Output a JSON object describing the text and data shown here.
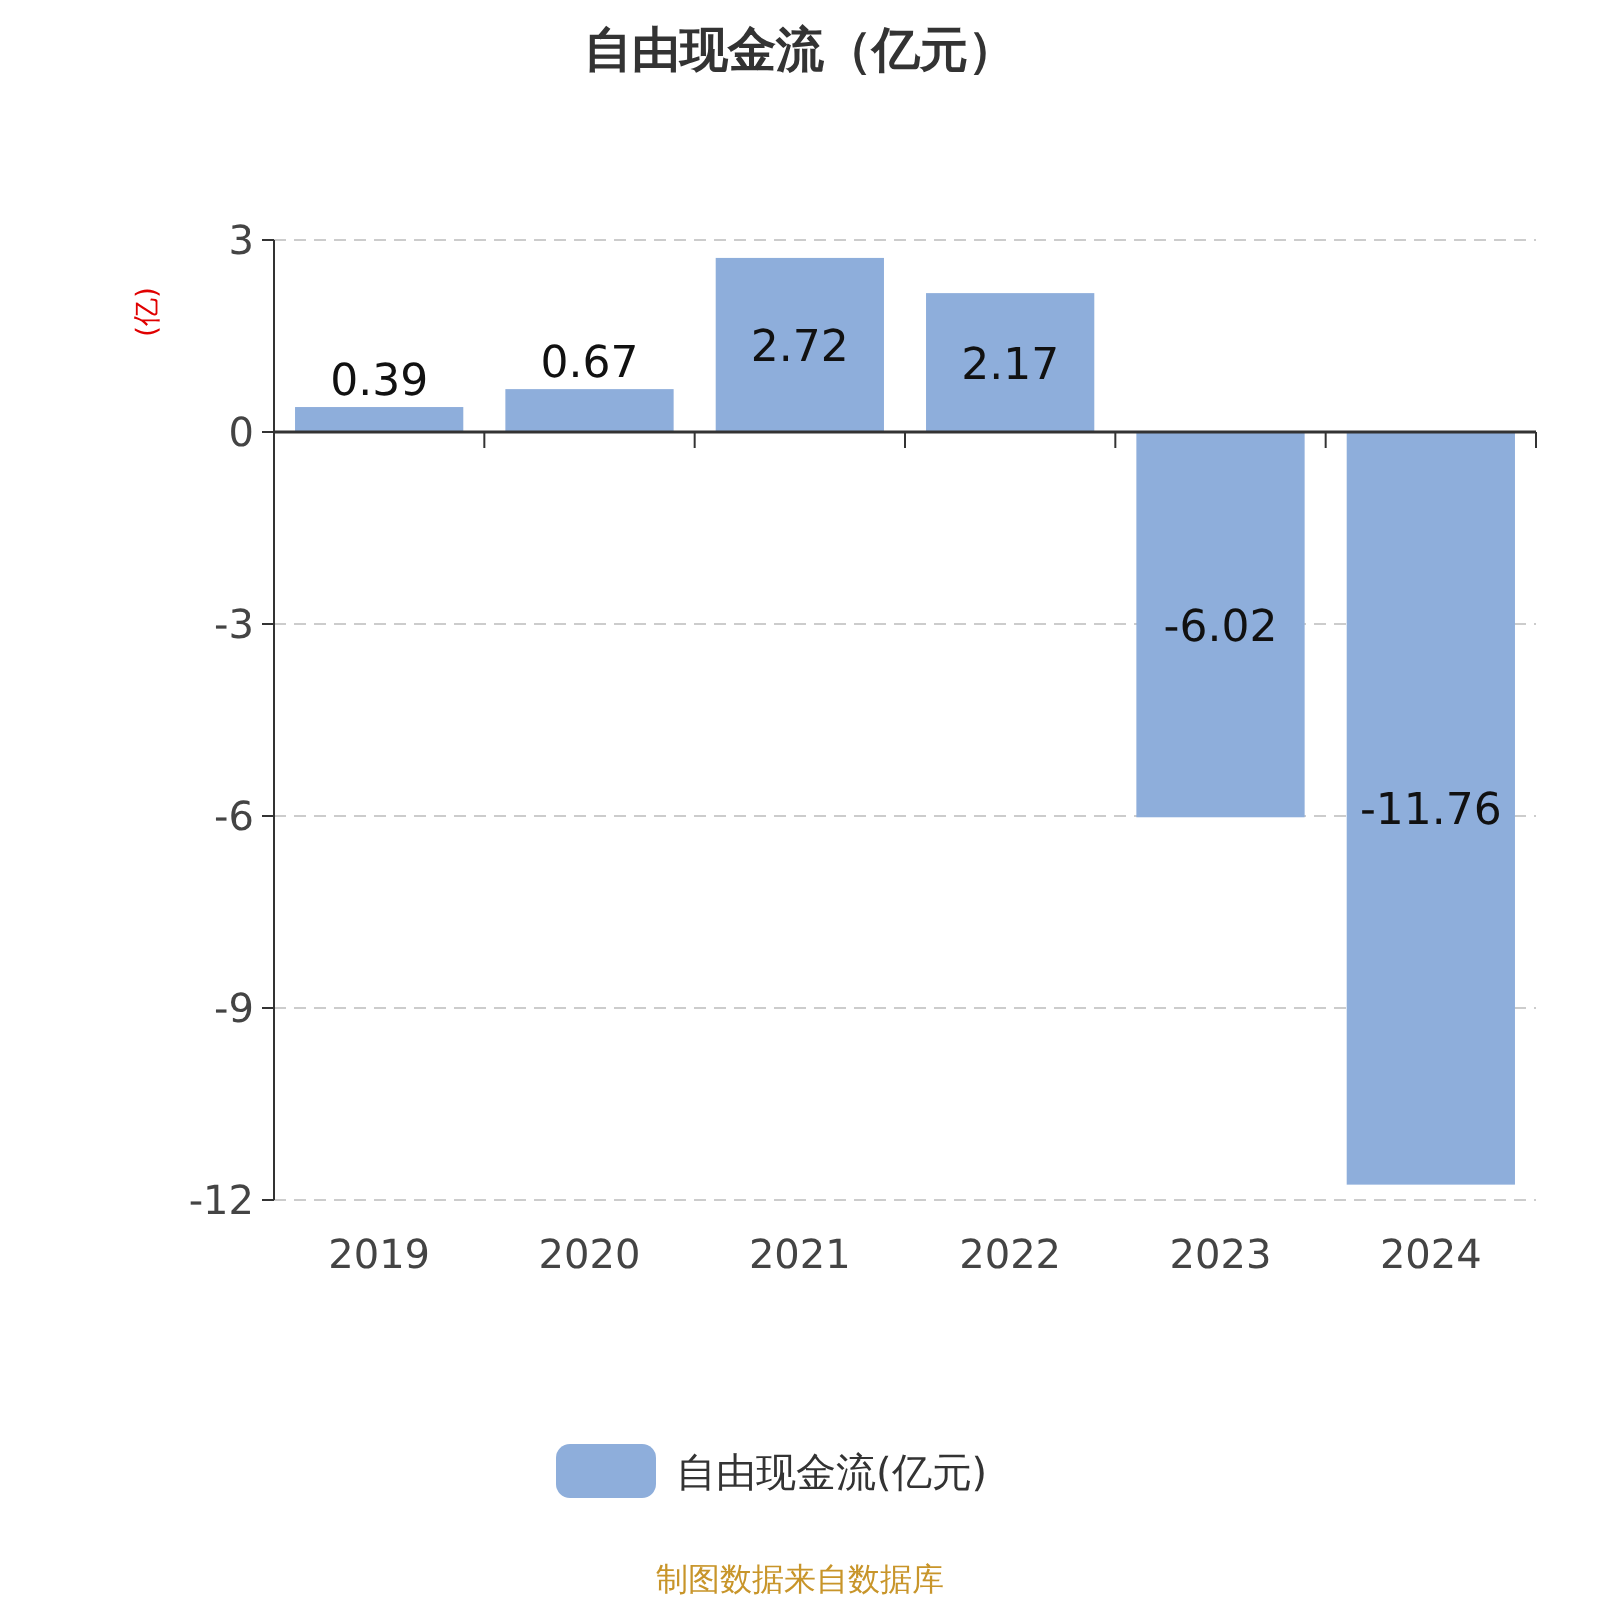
{
  "chart_data": {
    "type": "bar",
    "title": "自由现金流（亿元）",
    "ylabel": "(亿)",
    "categories": [
      "2019",
      "2020",
      "2021",
      "2022",
      "2023",
      "2024"
    ],
    "series": [
      {
        "name": "自由现金流(亿元)",
        "color": "#8eaedb",
        "values": [
          0.39,
          0.67,
          2.72,
          2.17,
          -6.02,
          -11.76
        ]
      }
    ],
    "ylim": [
      -12,
      3
    ],
    "yticks": [
      3,
      0,
      -3,
      -6,
      -9,
      -12
    ],
    "grid": "y",
    "legend": "bottom",
    "data_labels": true,
    "annotations": [
      "制图数据来自数据库"
    ]
  }
}
